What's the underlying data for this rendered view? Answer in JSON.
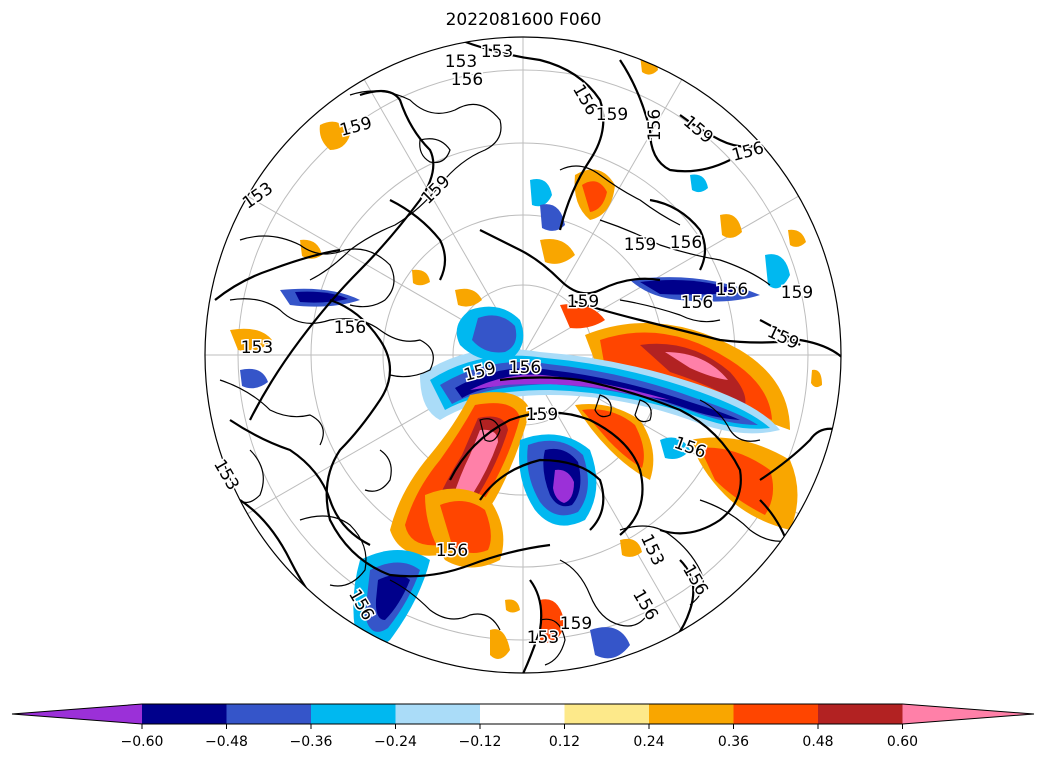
{
  "title": "2022081600 F060",
  "contour_labels": [
    "153",
    "153",
    "156",
    "159",
    "156",
    "159",
    "156",
    "159",
    "156",
    "153",
    "159",
    "159",
    "156",
    "159",
    "156",
    "159",
    "156",
    "159",
    "153",
    "156",
    "159",
    "156",
    "159",
    "156",
    "153",
    "156",
    "153",
    "156",
    "153",
    "159",
    "156",
    "156"
  ],
  "colorbar": {
    "colors": [
      "#9b30d8",
      "#00008b",
      "#3555c9",
      "#00b8f0",
      "#aadcf8",
      "#ffffff",
      "#fde98a",
      "#f9a600",
      "#ff4500",
      "#b22222",
      "#ff80a8"
    ],
    "ticks": [
      "−0.60",
      "−0.48",
      "−0.36",
      "−0.24",
      "−0.12",
      "0.12",
      "0.24",
      "0.36",
      "0.48",
      "0.60"
    ],
    "extend": "both"
  }
}
